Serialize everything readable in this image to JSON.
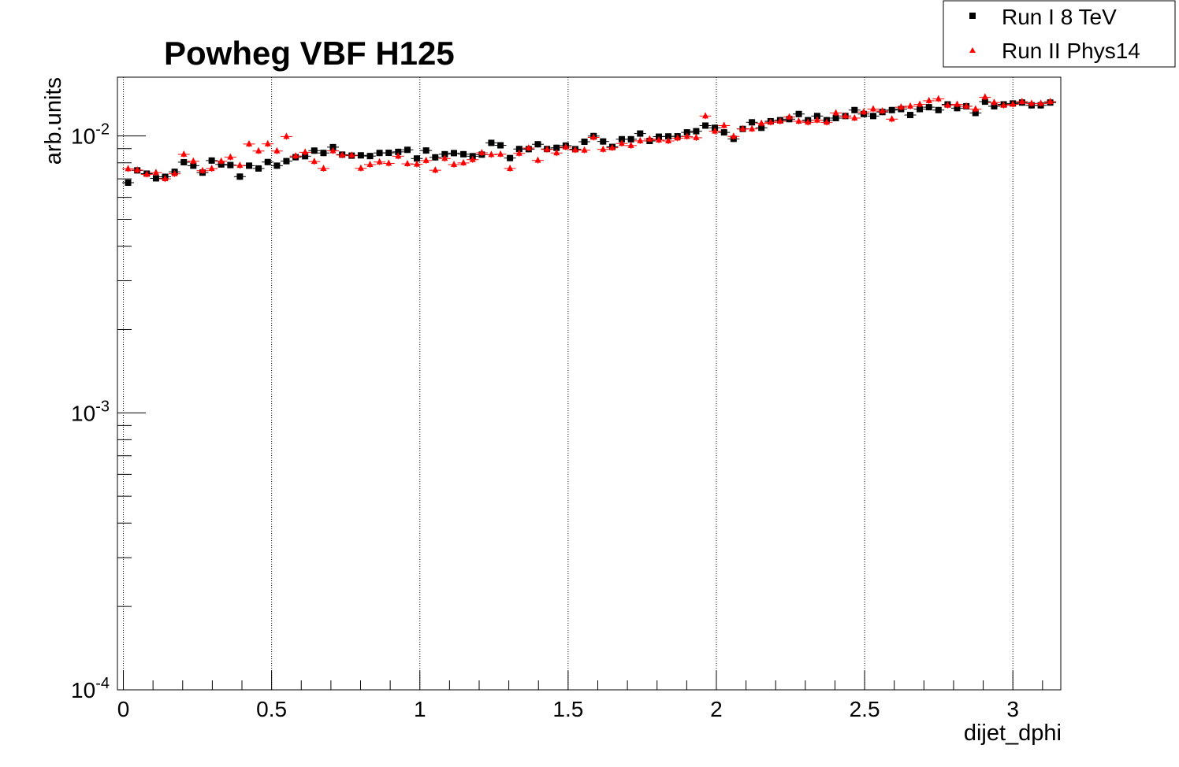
{
  "chart_data": {
    "type": "scatter",
    "title": "Powheg VBF H125",
    "xlabel": "dijet_dphi",
    "ylabel": "arb.units",
    "xlim": [
      -0.02,
      3.1616
    ],
    "ylim": [
      0.0001,
      0.0163
    ],
    "yscale": "log",
    "grid": {
      "x": true,
      "y": false
    },
    "legend_position": "top-right",
    "x_ticks": [
      {
        "value": 0,
        "label": "0"
      },
      {
        "value": 0.5,
        "label": "0.5"
      },
      {
        "value": 1,
        "label": "1"
      },
      {
        "value": 1.5,
        "label": "1.5"
      },
      {
        "value": 2,
        "label": "2"
      },
      {
        "value": 2.5,
        "label": "2.5"
      },
      {
        "value": 3,
        "label": "3"
      }
    ],
    "y_ticks": [
      {
        "value": 0.0001,
        "base": "10",
        "exp": "-4"
      },
      {
        "value": 0.001,
        "base": "10",
        "exp": "-3"
      },
      {
        "value": 0.01,
        "base": "10",
        "exp": "-2"
      }
    ],
    "x": [
      0.016,
      0.047,
      0.079,
      0.11,
      0.141,
      0.173,
      0.204,
      0.236,
      0.267,
      0.298,
      0.33,
      0.361,
      0.393,
      0.424,
      0.456,
      0.487,
      0.518,
      0.55,
      0.581,
      0.613,
      0.644,
      0.675,
      0.707,
      0.738,
      0.77,
      0.801,
      0.832,
      0.864,
      0.895,
      0.927,
      0.958,
      0.99,
      1.021,
      1.052,
      1.084,
      1.115,
      1.147,
      1.178,
      1.209,
      1.241,
      1.272,
      1.304,
      1.335,
      1.367,
      1.398,
      1.429,
      1.461,
      1.492,
      1.524,
      1.555,
      1.586,
      1.618,
      1.649,
      1.681,
      1.712,
      1.743,
      1.775,
      1.806,
      1.838,
      1.869,
      1.901,
      1.932,
      1.963,
      1.995,
      2.026,
      2.058,
      2.089,
      2.12,
      2.152,
      2.183,
      2.215,
      2.246,
      2.278,
      2.309,
      2.34,
      2.372,
      2.403,
      2.435,
      2.466,
      2.497,
      2.529,
      2.56,
      2.592,
      2.623,
      2.654,
      2.686,
      2.717,
      2.749,
      2.78,
      2.812,
      2.843,
      2.874,
      2.906,
      2.937,
      2.969,
      3.0,
      3.031,
      3.063,
      3.094,
      3.126
    ],
    "series": [
      {
        "name": "Run I 8 TeV",
        "marker": "square",
        "color": "#000000",
        "values": [
          0.00678,
          0.00751,
          0.00731,
          0.00703,
          0.00712,
          0.00742,
          0.00804,
          0.00781,
          0.00737,
          0.00815,
          0.00789,
          0.00785,
          0.00713,
          0.00781,
          0.00763,
          0.00805,
          0.00781,
          0.00811,
          0.00838,
          0.00845,
          0.00885,
          0.00868,
          0.00911,
          0.00856,
          0.00849,
          0.00851,
          0.00846,
          0.00868,
          0.00869,
          0.00876,
          0.00891,
          0.00829,
          0.00886,
          0.00837,
          0.00859,
          0.00867,
          0.00859,
          0.00845,
          0.00856,
          0.00944,
          0.00925,
          0.00832,
          0.00897,
          0.00896,
          0.00933,
          0.00897,
          0.00906,
          0.00923,
          0.00896,
          0.00953,
          0.00999,
          0.00955,
          0.00913,
          0.00973,
          0.00973,
          0.0102,
          0.00959,
          0.00994,
          0.00996,
          0.00997,
          0.0103,
          0.0104,
          0.0109,
          0.0107,
          0.0103,
          0.00976,
          0.0106,
          0.0112,
          0.0107,
          0.0113,
          0.0114,
          0.0115,
          0.012,
          0.0114,
          0.0118,
          0.0114,
          0.0116,
          0.0118,
          0.0124,
          0.012,
          0.0118,
          0.0122,
          0.0124,
          0.0125,
          0.0119,
          0.0125,
          0.0127,
          0.0124,
          0.013,
          0.0126,
          0.0128,
          0.0121,
          0.0133,
          0.0128,
          0.013,
          0.0131,
          0.0132,
          0.0129,
          0.0129,
          0.0132
        ]
      },
      {
        "name": "Run II Phys14",
        "marker": "triangle",
        "color": "#ff0000",
        "values": [
          0.00761,
          0.00753,
          0.00726,
          0.00737,
          0.007,
          0.0073,
          0.00858,
          0.0081,
          0.00749,
          0.00762,
          0.0081,
          0.00838,
          0.00782,
          0.00935,
          0.00882,
          0.00936,
          0.00882,
          0.00995,
          0.00846,
          0.00873,
          0.00808,
          0.00763,
          0.00883,
          0.00853,
          0.00852,
          0.00764,
          0.00788,
          0.00805,
          0.00796,
          0.00845,
          0.00793,
          0.0079,
          0.00815,
          0.00752,
          0.00829,
          0.00788,
          0.00799,
          0.00821,
          0.00869,
          0.00856,
          0.00859,
          0.00763,
          0.00865,
          0.00904,
          0.00816,
          0.00894,
          0.00868,
          0.00911,
          0.0089,
          0.00888,
          0.00988,
          0.00894,
          0.00906,
          0.00939,
          0.00923,
          0.0096,
          0.00974,
          0.00966,
          0.00959,
          0.00982,
          0.00995,
          0.00985,
          0.0118,
          0.0104,
          0.0109,
          0.00996,
          0.0106,
          0.0106,
          0.0111,
          0.0112,
          0.0113,
          0.0117,
          0.0113,
          0.0112,
          0.0114,
          0.0112,
          0.0121,
          0.0118,
          0.0116,
          0.0122,
          0.0125,
          0.0123,
          0.0115,
          0.0127,
          0.0128,
          0.013,
          0.0134,
          0.0136,
          0.0129,
          0.013,
          0.0128,
          0.0125,
          0.0138,
          0.0132,
          0.0129,
          0.013,
          0.0133,
          0.0131,
          0.0131,
          0.0133
        ]
      }
    ]
  }
}
